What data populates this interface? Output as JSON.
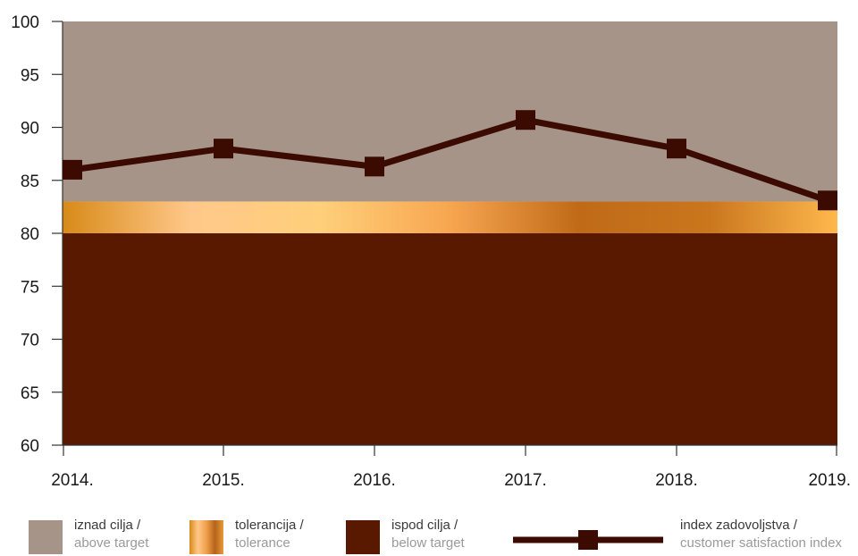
{
  "colors": {
    "above": "#a69489",
    "below": "#591800",
    "line": "#3b0a00",
    "axis": "#333333",
    "tolerance_gradient": [
      "#d88a18",
      "#ffc88a",
      "#ffcf7a",
      "#f7a650",
      "#c06a18",
      "#c9761d",
      "#ffb84d"
    ]
  },
  "chart_data": {
    "type": "line",
    "categories": [
      "2014.",
      "2015.",
      "2016.",
      "2017.",
      "2018.",
      "2019."
    ],
    "series": [
      {
        "name": "index zadovoljstva / customer satisfaction index",
        "values": [
          86.0,
          88.0,
          86.3,
          90.7,
          88.0,
          83.1
        ]
      }
    ],
    "bands": [
      {
        "name": "iznad cilja / above target",
        "from": 83,
        "to": 100
      },
      {
        "name": "tolerancija / tolerance",
        "from": 80,
        "to": 83
      },
      {
        "name": "ispod cilja / below target",
        "from": 60,
        "to": 80
      }
    ],
    "ylim": [
      60,
      100
    ],
    "yticks": [
      60,
      65,
      70,
      75,
      80,
      85,
      90,
      95,
      100
    ],
    "ytick_labels": [
      "60",
      "65",
      "70",
      "75",
      "80",
      "85",
      "90",
      "95",
      "100"
    ],
    "grid": false,
    "legend_position": "bottom",
    "title": "",
    "xlabel": "",
    "ylabel": ""
  },
  "legend": {
    "above": {
      "line1": "iznad cilja /",
      "line2": "above target"
    },
    "tolerance": {
      "line1": "tolerancija /",
      "line2": "tolerance"
    },
    "below": {
      "line1": "ispod cilja /",
      "line2": "below target"
    },
    "index": {
      "line1": "index zadovoljstva /",
      "line2": "customer satisfaction index"
    }
  }
}
